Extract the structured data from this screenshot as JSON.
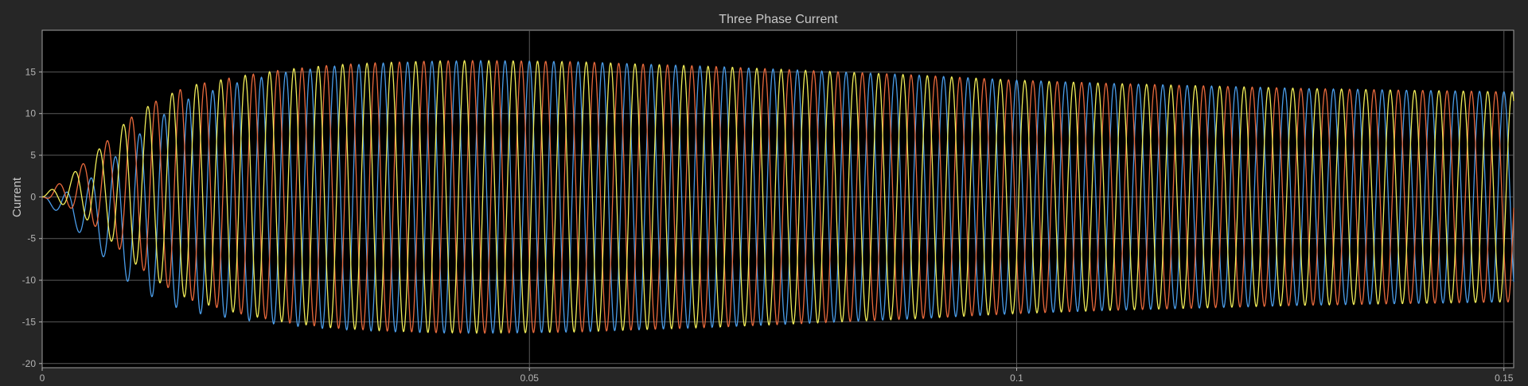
{
  "window": {
    "background": "#262626",
    "plot_background": "#000000",
    "grid_color": "#5a5a5a"
  },
  "chart_data": {
    "type": "line",
    "title": "Three Phase Current",
    "xlabel": "",
    "ylabel": "Current",
    "xlim": [
      0,
      0.151
    ],
    "ylim": [
      -20.5,
      20
    ],
    "grid": true,
    "xticks": [
      0,
      0.05,
      0.1,
      0.15
    ],
    "xtick_labels": [
      "0",
      "0.05",
      "0.1",
      "0.15"
    ],
    "yticks": [
      -20,
      -15,
      -10,
      -5,
      0,
      5,
      10,
      15
    ],
    "ytick_labels": [
      "-20",
      "-15",
      "-10",
      "-5",
      "0",
      "5",
      "10",
      "15"
    ],
    "frequency_hz": 400,
    "series": [
      {
        "color": "#4a9ce8",
        "phase_deg": 90,
        "envelope": {
          "t": [
            0,
            0.003,
            0.006,
            0.009,
            0.012,
            0.015,
            0.02,
            0.025,
            0.03,
            0.035,
            0.04,
            0.045,
            0.05,
            0.055,
            0.06,
            0.07,
            0.08,
            0.09,
            0.1,
            0.11,
            0.12,
            0.13,
            0.14,
            0.151
          ],
          "a": [
            0,
            2.0,
            5.0,
            8.5,
            11.0,
            12.8,
            14.2,
            15.2,
            15.8,
            16.1,
            16.3,
            16.35,
            16.3,
            16.2,
            16.0,
            15.6,
            15.1,
            14.6,
            14.0,
            13.6,
            13.3,
            13.0,
            12.8,
            12.6
          ]
        }
      },
      {
        "color": "#e8693c",
        "phase_deg": 210,
        "envelope": {
          "t": [
            0,
            0.003,
            0.006,
            0.009,
            0.012,
            0.015,
            0.02,
            0.025,
            0.03,
            0.035,
            0.04,
            0.045,
            0.05,
            0.055,
            0.06,
            0.07,
            0.08,
            0.09,
            0.1,
            0.11,
            0.12,
            0.13,
            0.14,
            0.151
          ],
          "a": [
            0,
            2.0,
            5.0,
            8.5,
            11.0,
            12.8,
            14.2,
            15.2,
            15.8,
            16.1,
            16.3,
            16.35,
            16.3,
            16.2,
            16.0,
            15.6,
            15.1,
            14.6,
            14.0,
            13.6,
            13.3,
            13.0,
            12.8,
            12.6
          ]
        }
      },
      {
        "color": "#f0ec58",
        "phase_deg": 330,
        "envelope": {
          "t": [
            0,
            0.003,
            0.006,
            0.009,
            0.012,
            0.015,
            0.02,
            0.025,
            0.03,
            0.035,
            0.04,
            0.045,
            0.05,
            0.055,
            0.06,
            0.07,
            0.08,
            0.09,
            0.1,
            0.11,
            0.12,
            0.13,
            0.14,
            0.151
          ],
          "a": [
            0,
            2.0,
            5.0,
            8.5,
            11.0,
            12.8,
            14.2,
            15.2,
            15.8,
            16.1,
            16.3,
            16.35,
            16.3,
            16.2,
            16.0,
            15.6,
            15.1,
            14.6,
            14.0,
            13.6,
            13.3,
            13.0,
            12.8,
            12.6
          ]
        }
      }
    ]
  }
}
